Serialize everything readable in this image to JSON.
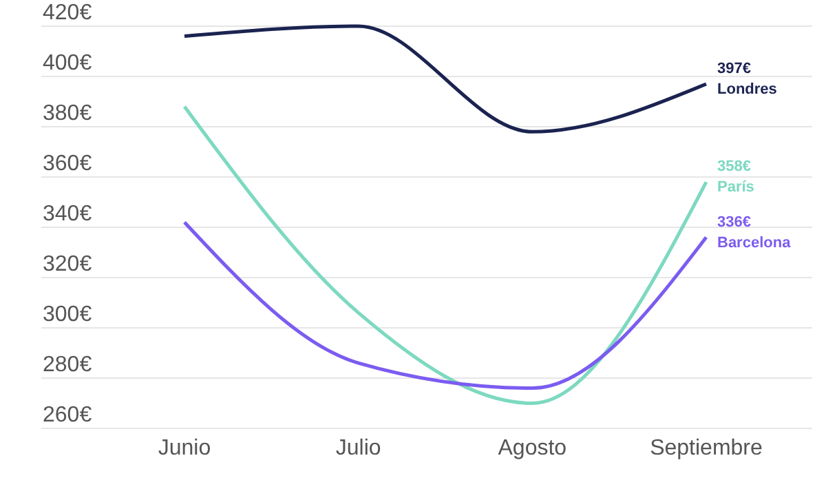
{
  "chart_data": {
    "type": "line",
    "categories": [
      "Junio",
      "Julio",
      "Agosto",
      "Septiembre"
    ],
    "series": [
      {
        "name": "Londres",
        "color": "#1b2350",
        "values": [
          416,
          420,
          378,
          397
        ],
        "value_labels": [
          null,
          null,
          null,
          "397€"
        ]
      },
      {
        "name": "París",
        "color": "#7dd9c0",
        "values": [
          388,
          306,
          270,
          358
        ],
        "value_labels": [
          null,
          null,
          null,
          "358€"
        ]
      },
      {
        "name": "Barcelona",
        "color": "#7b5cf0",
        "values": [
          342,
          286,
          276,
          336
        ],
        "value_labels": [
          null,
          null,
          null,
          "336€"
        ]
      }
    ],
    "ylim": [
      260,
      420
    ],
    "yticks": [
      {
        "value": 260,
        "label": "260€"
      },
      {
        "value": 280,
        "label": "280€"
      },
      {
        "value": 300,
        "label": "300€"
      },
      {
        "value": 320,
        "label": "320€"
      },
      {
        "value": 340,
        "label": "340€"
      },
      {
        "value": 360,
        "label": "360€"
      },
      {
        "value": 380,
        "label": "380€"
      },
      {
        "value": 400,
        "label": "400€"
      },
      {
        "value": 420,
        "label": "420€"
      }
    ],
    "grid": "y",
    "marker": "none",
    "line_style": "solid"
  }
}
